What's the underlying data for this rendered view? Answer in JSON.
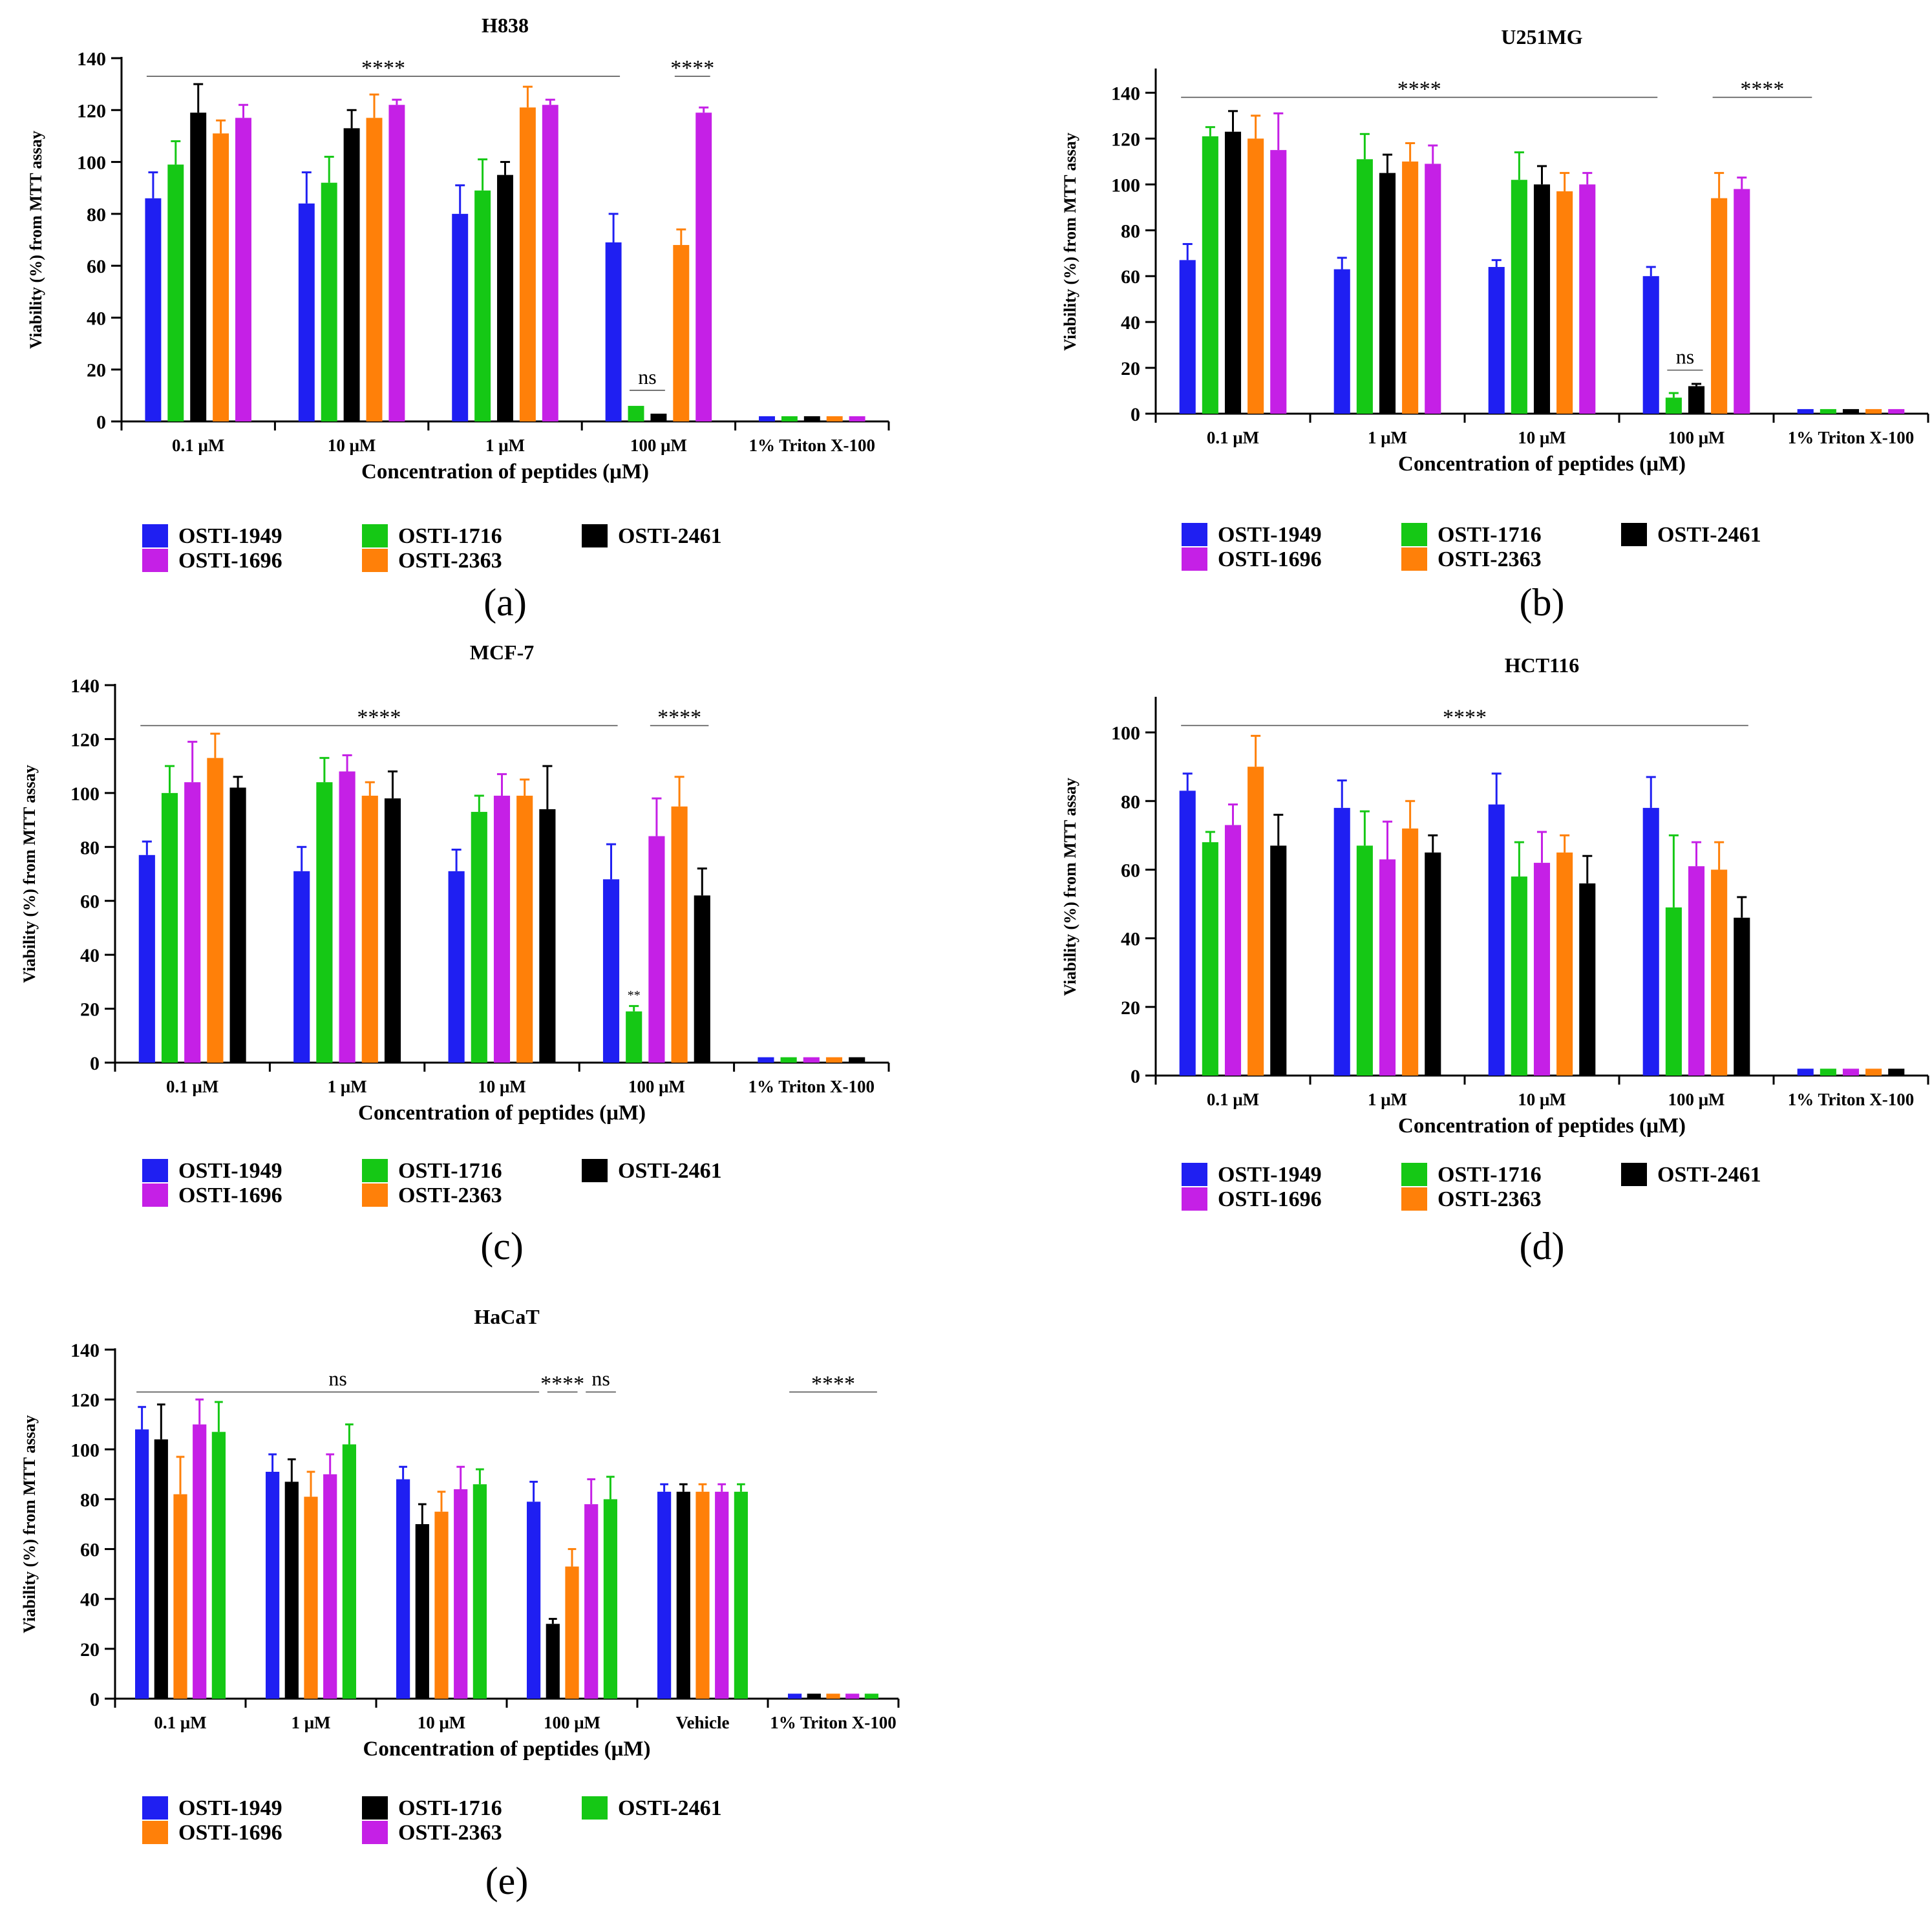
{
  "figure": {
    "colors": {
      "blue": "#1f1ff2",
      "green": "#15c815",
      "black": "#000000",
      "orange": "#ff8009",
      "magenta": "#c520e6"
    }
  },
  "chart_data": [
    {
      "id": "a",
      "panel_label": "(a)",
      "type": "bar",
      "title": "H838",
      "xlabel": "Concentration of peptides (μM)",
      "ylabel": "Viability (%) from MTT assay",
      "ylim": [
        0,
        140
      ],
      "yticks": [
        0,
        20,
        40,
        60,
        80,
        100,
        120,
        140
      ],
      "categories": [
        "0.1 μM",
        "10 μM",
        "1 μM",
        "100 μM",
        "1% Triton X-100"
      ],
      "series": [
        {
          "name": "OSTI-1949",
          "color": "#1f1ff2",
          "values": [
            86,
            84,
            80,
            69,
            2
          ],
          "errors": [
            10,
            12,
            11,
            11,
            0.5
          ]
        },
        {
          "name": "OSTI-1716",
          "color": "#15c815",
          "values": [
            99,
            92,
            89,
            6,
            2
          ],
          "errors": [
            9,
            10,
            12,
            0.5,
            0.5
          ]
        },
        {
          "name": "OSTI-2461",
          "color": "#000000",
          "values": [
            119,
            113,
            95,
            3,
            2
          ],
          "errors": [
            11,
            7,
            5,
            0.5,
            0.5
          ]
        },
        {
          "name": "OSTI-2363",
          "color": "#ff8009",
          "values": [
            111,
            117,
            121,
            68,
            2
          ],
          "errors": [
            5,
            9,
            8,
            6,
            0.5
          ]
        },
        {
          "name": "OSTI-1696",
          "color": "#c520e6",
          "values": [
            117,
            122,
            122,
            119,
            2
          ],
          "errors": [
            5,
            2,
            2,
            2,
            0.5
          ]
        }
      ],
      "annotations": [
        {
          "text": "****",
          "from": [
            0,
            0
          ],
          "to": [
            3,
            0
          ],
          "y": 133
        },
        {
          "text": "****",
          "from": [
            3,
            3
          ],
          "to": [
            3,
            4
          ],
          "y": 133
        },
        {
          "text": "ns",
          "from": [
            3,
            1
          ],
          "to": [
            3,
            2
          ],
          "y": 12
        }
      ],
      "legend": {
        "position": "bottom",
        "columns": 3,
        "order": [
          "OSTI-1949",
          "OSTI-1716",
          "OSTI-2461",
          "OSTI-1696",
          "OSTI-2363"
        ]
      }
    },
    {
      "id": "b",
      "panel_label": "(b)",
      "type": "bar",
      "title": "U251MG",
      "xlabel": "Concentration of peptides (μM)",
      "ylabel": "Viability (%) from MTT assay",
      "ylim": [
        0,
        150
      ],
      "yticks": [
        0,
        20,
        40,
        60,
        80,
        100,
        120,
        140
      ],
      "categories": [
        "0.1 μM",
        "1 μM",
        "10 μM",
        "100 μM",
        "1% Triton X-100"
      ],
      "series": [
        {
          "name": "OSTI-1949",
          "color": "#1f1ff2",
          "values": [
            67,
            63,
            64,
            60,
            2
          ],
          "errors": [
            7,
            5,
            3,
            4,
            0.5
          ]
        },
        {
          "name": "OSTI-1716",
          "color": "#15c815",
          "values": [
            121,
            111,
            102,
            7,
            2
          ],
          "errors": [
            4,
            11,
            12,
            2,
            0.5
          ]
        },
        {
          "name": "OSTI-2461",
          "color": "#000000",
          "values": [
            123,
            105,
            100,
            12,
            2
          ],
          "errors": [
            9,
            8,
            8,
            1,
            0.5
          ]
        },
        {
          "name": "OSTI-2363",
          "color": "#ff8009",
          "values": [
            120,
            110,
            97,
            94,
            2
          ],
          "errors": [
            10,
            8,
            8,
            11,
            0.5
          ]
        },
        {
          "name": "OSTI-1696",
          "color": "#c520e6",
          "values": [
            115,
            109,
            100,
            98,
            2
          ],
          "errors": [
            16,
            8,
            5,
            5,
            0.5
          ]
        }
      ],
      "annotations": [
        {
          "text": "****",
          "from": [
            0,
            0
          ],
          "to": [
            3,
            0
          ],
          "y": 138
        },
        {
          "text": "****",
          "from": [
            3,
            3
          ],
          "to": [
            4,
            0
          ],
          "y": 138
        },
        {
          "text": "ns",
          "from": [
            3,
            1
          ],
          "to": [
            3,
            2
          ],
          "y": 19
        }
      ],
      "legend": {
        "position": "bottom",
        "columns": 3,
        "order": [
          "OSTI-1949",
          "OSTI-1716",
          "OSTI-2461",
          "OSTI-1696",
          "OSTI-2363"
        ]
      }
    },
    {
      "id": "c",
      "panel_label": "(c)",
      "type": "bar",
      "title": "MCF-7",
      "xlabel": "Concentration of peptides (μM)",
      "ylabel": "Viability (%) from MTT assay",
      "ylim": [
        0,
        140
      ],
      "yticks": [
        0,
        20,
        40,
        60,
        80,
        100,
        120,
        140
      ],
      "categories": [
        "0.1 μM",
        "1 μM",
        "10 μM",
        "100 μM",
        "1% Triton X-100"
      ],
      "series": [
        {
          "name": "OSTI-1949",
          "color": "#1f1ff2",
          "values": [
            77,
            71,
            71,
            68,
            2
          ],
          "errors": [
            5,
            9,
            8,
            13,
            0.5
          ]
        },
        {
          "name": "OSTI-1716",
          "color": "#15c815",
          "values": [
            100,
            104,
            93,
            19,
            2
          ],
          "errors": [
            10,
            9,
            6,
            2,
            0.5
          ]
        },
        {
          "name": "OSTI-1696",
          "color": "#c520e6",
          "values": [
            104,
            108,
            99,
            84,
            2
          ],
          "errors": [
            15,
            6,
            8,
            14,
            0.5
          ]
        },
        {
          "name": "OSTI-2363",
          "color": "#ff8009",
          "values": [
            113,
            99,
            99,
            95,
            2
          ],
          "errors": [
            9,
            5,
            6,
            11,
            0.5
          ]
        },
        {
          "name": "OSTI-2461",
          "color": "#000000",
          "values": [
            102,
            98,
            94,
            62,
            2
          ],
          "errors": [
            4,
            10,
            16,
            10,
            0.5
          ]
        }
      ],
      "annotations": [
        {
          "text": "****",
          "from": [
            0,
            0
          ],
          "to": [
            3,
            0
          ],
          "y": 125
        },
        {
          "text": "****",
          "from": [
            3,
            2
          ],
          "to": [
            3,
            4
          ],
          "y": 125
        },
        {
          "text": "**",
          "from": [
            3,
            1
          ],
          "to": [
            3,
            1
          ],
          "y": 23
        }
      ],
      "legend": {
        "position": "bottom",
        "columns": 3,
        "order": [
          "OSTI-1949",
          "OSTI-1716",
          "OSTI-2461",
          "OSTI-1696",
          "OSTI-2363"
        ]
      }
    },
    {
      "id": "d",
      "panel_label": "(d)",
      "type": "bar",
      "title": "HCT116",
      "xlabel": "Concentration of peptides (μM)",
      "ylabel": "Viability (%) from MTT assay",
      "ylim": [
        0,
        110
      ],
      "yticks": [
        0,
        20,
        40,
        60,
        80,
        100
      ],
      "categories": [
        "0.1 μM",
        "1 μM",
        "10 μM",
        "100 μM",
        "1% Triton X-100"
      ],
      "series": [
        {
          "name": "OSTI-1949",
          "color": "#1f1ff2",
          "values": [
            83,
            78,
            79,
            78,
            2
          ],
          "errors": [
            5,
            8,
            9,
            9,
            0.5
          ]
        },
        {
          "name": "OSTI-1716",
          "color": "#15c815",
          "values": [
            68,
            67,
            58,
            49,
            2
          ],
          "errors": [
            3,
            10,
            10,
            21,
            0.5
          ]
        },
        {
          "name": "OSTI-1696",
          "color": "#c520e6",
          "values": [
            73,
            63,
            62,
            61,
            2
          ],
          "errors": [
            6,
            11,
            9,
            7,
            0.5
          ]
        },
        {
          "name": "OSTI-2363",
          "color": "#ff8009",
          "values": [
            90,
            72,
            65,
            60,
            2
          ],
          "errors": [
            9,
            8,
            5,
            8,
            0.5
          ]
        },
        {
          "name": "OSTI-2461",
          "color": "#000000",
          "values": [
            67,
            65,
            56,
            46,
            2
          ],
          "errors": [
            9,
            5,
            8,
            6,
            0.5
          ]
        }
      ],
      "annotations": [
        {
          "text": "****",
          "from": [
            0,
            0
          ],
          "to": [
            3,
            4
          ],
          "y": 102
        }
      ],
      "legend": {
        "position": "bottom",
        "columns": 3,
        "order": [
          "OSTI-1949",
          "OSTI-1716",
          "OSTI-2461",
          "OSTI-1696",
          "OSTI-2363"
        ]
      }
    },
    {
      "id": "e",
      "panel_label": "(e)",
      "type": "bar",
      "title": "HaCaT",
      "xlabel": "Concentration of peptides (μM)",
      "ylabel": "Viability (%) from MTT assay",
      "ylim": [
        0,
        140
      ],
      "yticks": [
        0,
        20,
        40,
        60,
        80,
        100,
        120,
        140
      ],
      "categories": [
        "0.1 μM",
        "1 μM",
        "10 μM",
        "100 μM",
        "Vehicle",
        "1% Triton X-100"
      ],
      "series": [
        {
          "name": "OSTI-1949",
          "color": "#1f1ff2",
          "values": [
            108,
            91,
            88,
            79,
            83,
            2
          ],
          "errors": [
            9,
            7,
            5,
            8,
            3,
            0.5
          ]
        },
        {
          "name": "OSTI-1716",
          "color": "#000000",
          "values": [
            104,
            87,
            70,
            30,
            83,
            2
          ],
          "errors": [
            14,
            9,
            8,
            2,
            3,
            0.5
          ]
        },
        {
          "name": "OSTI-1696",
          "color": "#ff8009",
          "values": [
            82,
            81,
            75,
            53,
            83,
            2
          ],
          "errors": [
            15,
            10,
            8,
            7,
            3,
            0.5
          ]
        },
        {
          "name": "OSTI-2363",
          "color": "#c520e6",
          "values": [
            110,
            90,
            84,
            78,
            83,
            2
          ],
          "errors": [
            10,
            8,
            9,
            10,
            3,
            0.5
          ]
        },
        {
          "name": "OSTI-2461",
          "color": "#15c815",
          "values": [
            107,
            102,
            86,
            80,
            83,
            2
          ],
          "errors": [
            12,
            8,
            6,
            9,
            3,
            0.5
          ]
        }
      ],
      "annotations": [
        {
          "text": "ns",
          "from": [
            0,
            0
          ],
          "to": [
            3,
            0
          ],
          "y": 123
        },
        {
          "text": "****",
          "from": [
            3,
            1
          ],
          "to": [
            3,
            2
          ],
          "y": 123
        },
        {
          "text": "ns",
          "from": [
            3,
            3
          ],
          "to": [
            3,
            4
          ],
          "y": 123
        },
        {
          "text": "****",
          "from": [
            5,
            0
          ],
          "to": [
            5,
            4
          ],
          "y": 123
        }
      ],
      "legend": {
        "position": "bottom",
        "columns": 3,
        "order": [
          "OSTI-1949",
          "OSTI-1716",
          "OSTI-2461",
          "OSTI-1696",
          "OSTI-2363"
        ]
      }
    }
  ]
}
